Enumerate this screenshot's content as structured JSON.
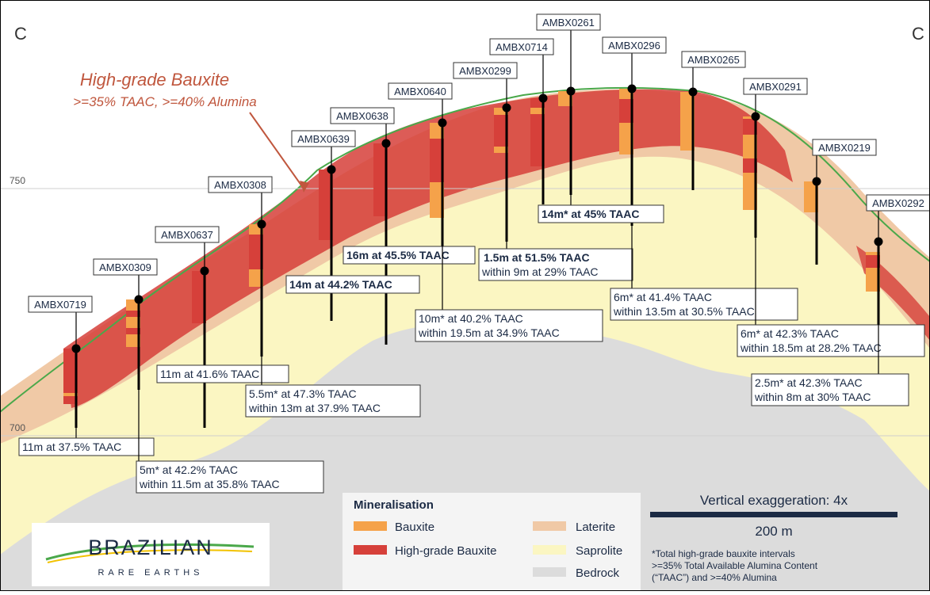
{
  "section": {
    "left_label": "C",
    "right_label": "C"
  },
  "elevations": {
    "upper": "750",
    "lower": "700"
  },
  "callout": {
    "title": "High-grade Bauxite",
    "subtitle": ">=35% TAAC, >=40% Alumina"
  },
  "holes": [
    "AMBX0719",
    "AMBX0309",
    "AMBX0637",
    "AMBX0308",
    "AMBX0639",
    "AMBX0638",
    "AMBX0640",
    "AMBX0299",
    "AMBX0714",
    "AMBX0261",
    "AMBX0296",
    "AMBX0265",
    "AMBX0291",
    "AMBX0219",
    "AMBX0292"
  ],
  "intercepts": [
    {
      "id": "i0719",
      "lines": [
        "11m at 37.5% TAAC"
      ],
      "bold": false
    },
    {
      "id": "i0309",
      "lines": [
        "5m* at 42.2% TAAC",
        "within 11.5m at 35.8% TAAC"
      ],
      "bold": false
    },
    {
      "id": "i0637",
      "lines": [
        "11m at 41.6% TAAC"
      ],
      "bold": false
    },
    {
      "id": "i0308",
      "lines": [
        "5.5m* at 47.3% TAAC",
        "within 13m at 37.9% TAAC"
      ],
      "bold": false
    },
    {
      "id": "i0639",
      "lines": [
        "14m at 44.2% TAAC"
      ],
      "bold": true
    },
    {
      "id": "i0638",
      "lines": [
        "16m at 45.5% TAAC"
      ],
      "bold": true
    },
    {
      "id": "i0640",
      "lines": [
        "10m* at 40.2% TAAC",
        "within 19.5m at 34.9% TAAC"
      ],
      "bold": false
    },
    {
      "id": "i0299",
      "lines": [
        "1.5m at 51.5% TAAC",
        "within 9m at 29% TAAC"
      ],
      "bold": "first"
    },
    {
      "id": "i0261",
      "lines": [
        "14m* at 45% TAAC"
      ],
      "bold": true
    },
    {
      "id": "i0296",
      "lines": [
        "6m* at 41.4% TAAC",
        "within 13.5m at 30.5% TAAC"
      ],
      "bold": false
    },
    {
      "id": "i0291",
      "lines": [
        "6m* at 42.3% TAAC",
        "within 18.5m at 28.2% TAAC"
      ],
      "bold": false
    },
    {
      "id": "i0292",
      "lines": [
        "2.5m* at 42.3% TAAC",
        "within 8m at 30% TAAC"
      ],
      "bold": false
    }
  ],
  "legend": {
    "title": "Mineralisation",
    "items": [
      {
        "label": "Bauxite",
        "color": "#f5a24a"
      },
      {
        "label": "High-grade Bauxite",
        "color": "#d6403a"
      },
      {
        "label": "Laterite",
        "color": "#f0c9a6"
      },
      {
        "label": "Saprolite",
        "color": "#fbf6c2"
      },
      {
        "label": "Bedrock",
        "color": "#dcdcdc"
      }
    ]
  },
  "scale": {
    "exaggeration": "Vertical exaggeration: 4x",
    "bar_label": "200 m"
  },
  "footnote": {
    "lines": [
      "*Total high-grade bauxite intervals",
      ">=35% Total Available Alumina Content",
      "(“TAAC”) and >=40% Alumina"
    ]
  },
  "logo": {
    "name": "BRAZILIAN",
    "sub": "RARE EARTHS"
  },
  "colors": {
    "bauxite": "#f5a24a",
    "high_grade": "#d6403a",
    "laterite": "#f0c9a6",
    "saprolite": "#fbf6c2",
    "bedrock": "#dcdcdc",
    "surface": "#4aa84a",
    "navy": "#1b2a44",
    "callout": "#c0573e"
  }
}
